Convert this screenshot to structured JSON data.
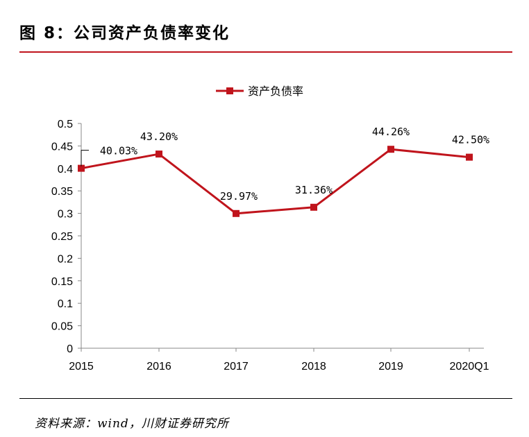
{
  "header": {
    "title": "图 8：公司资产负债率变化"
  },
  "footer": {
    "source": "资料来源：wind，川财证券研究所"
  },
  "chart_data": {
    "type": "line",
    "title": "",
    "xlabel": "",
    "ylabel": "",
    "categories": [
      "2015",
      "2016",
      "2017",
      "2018",
      "2019",
      "2020Q1"
    ],
    "series": [
      {
        "name": "资产负债率",
        "values": [
          0.4003,
          0.432,
          0.2997,
          0.3136,
          0.4426,
          0.425
        ],
        "labels": [
          "40.03%",
          "43.20%",
          "29.97%",
          "31.36%",
          "44.26%",
          "42.50%"
        ],
        "color": "#c0141c"
      }
    ],
    "ylim": [
      0,
      0.5
    ],
    "yticks": [
      "0",
      "0.05",
      "0.1",
      "0.15",
      "0.2",
      "0.25",
      "0.3",
      "0.35",
      "0.4",
      "0.45",
      "0.5"
    ],
    "grid": false,
    "legend": "top-center"
  }
}
